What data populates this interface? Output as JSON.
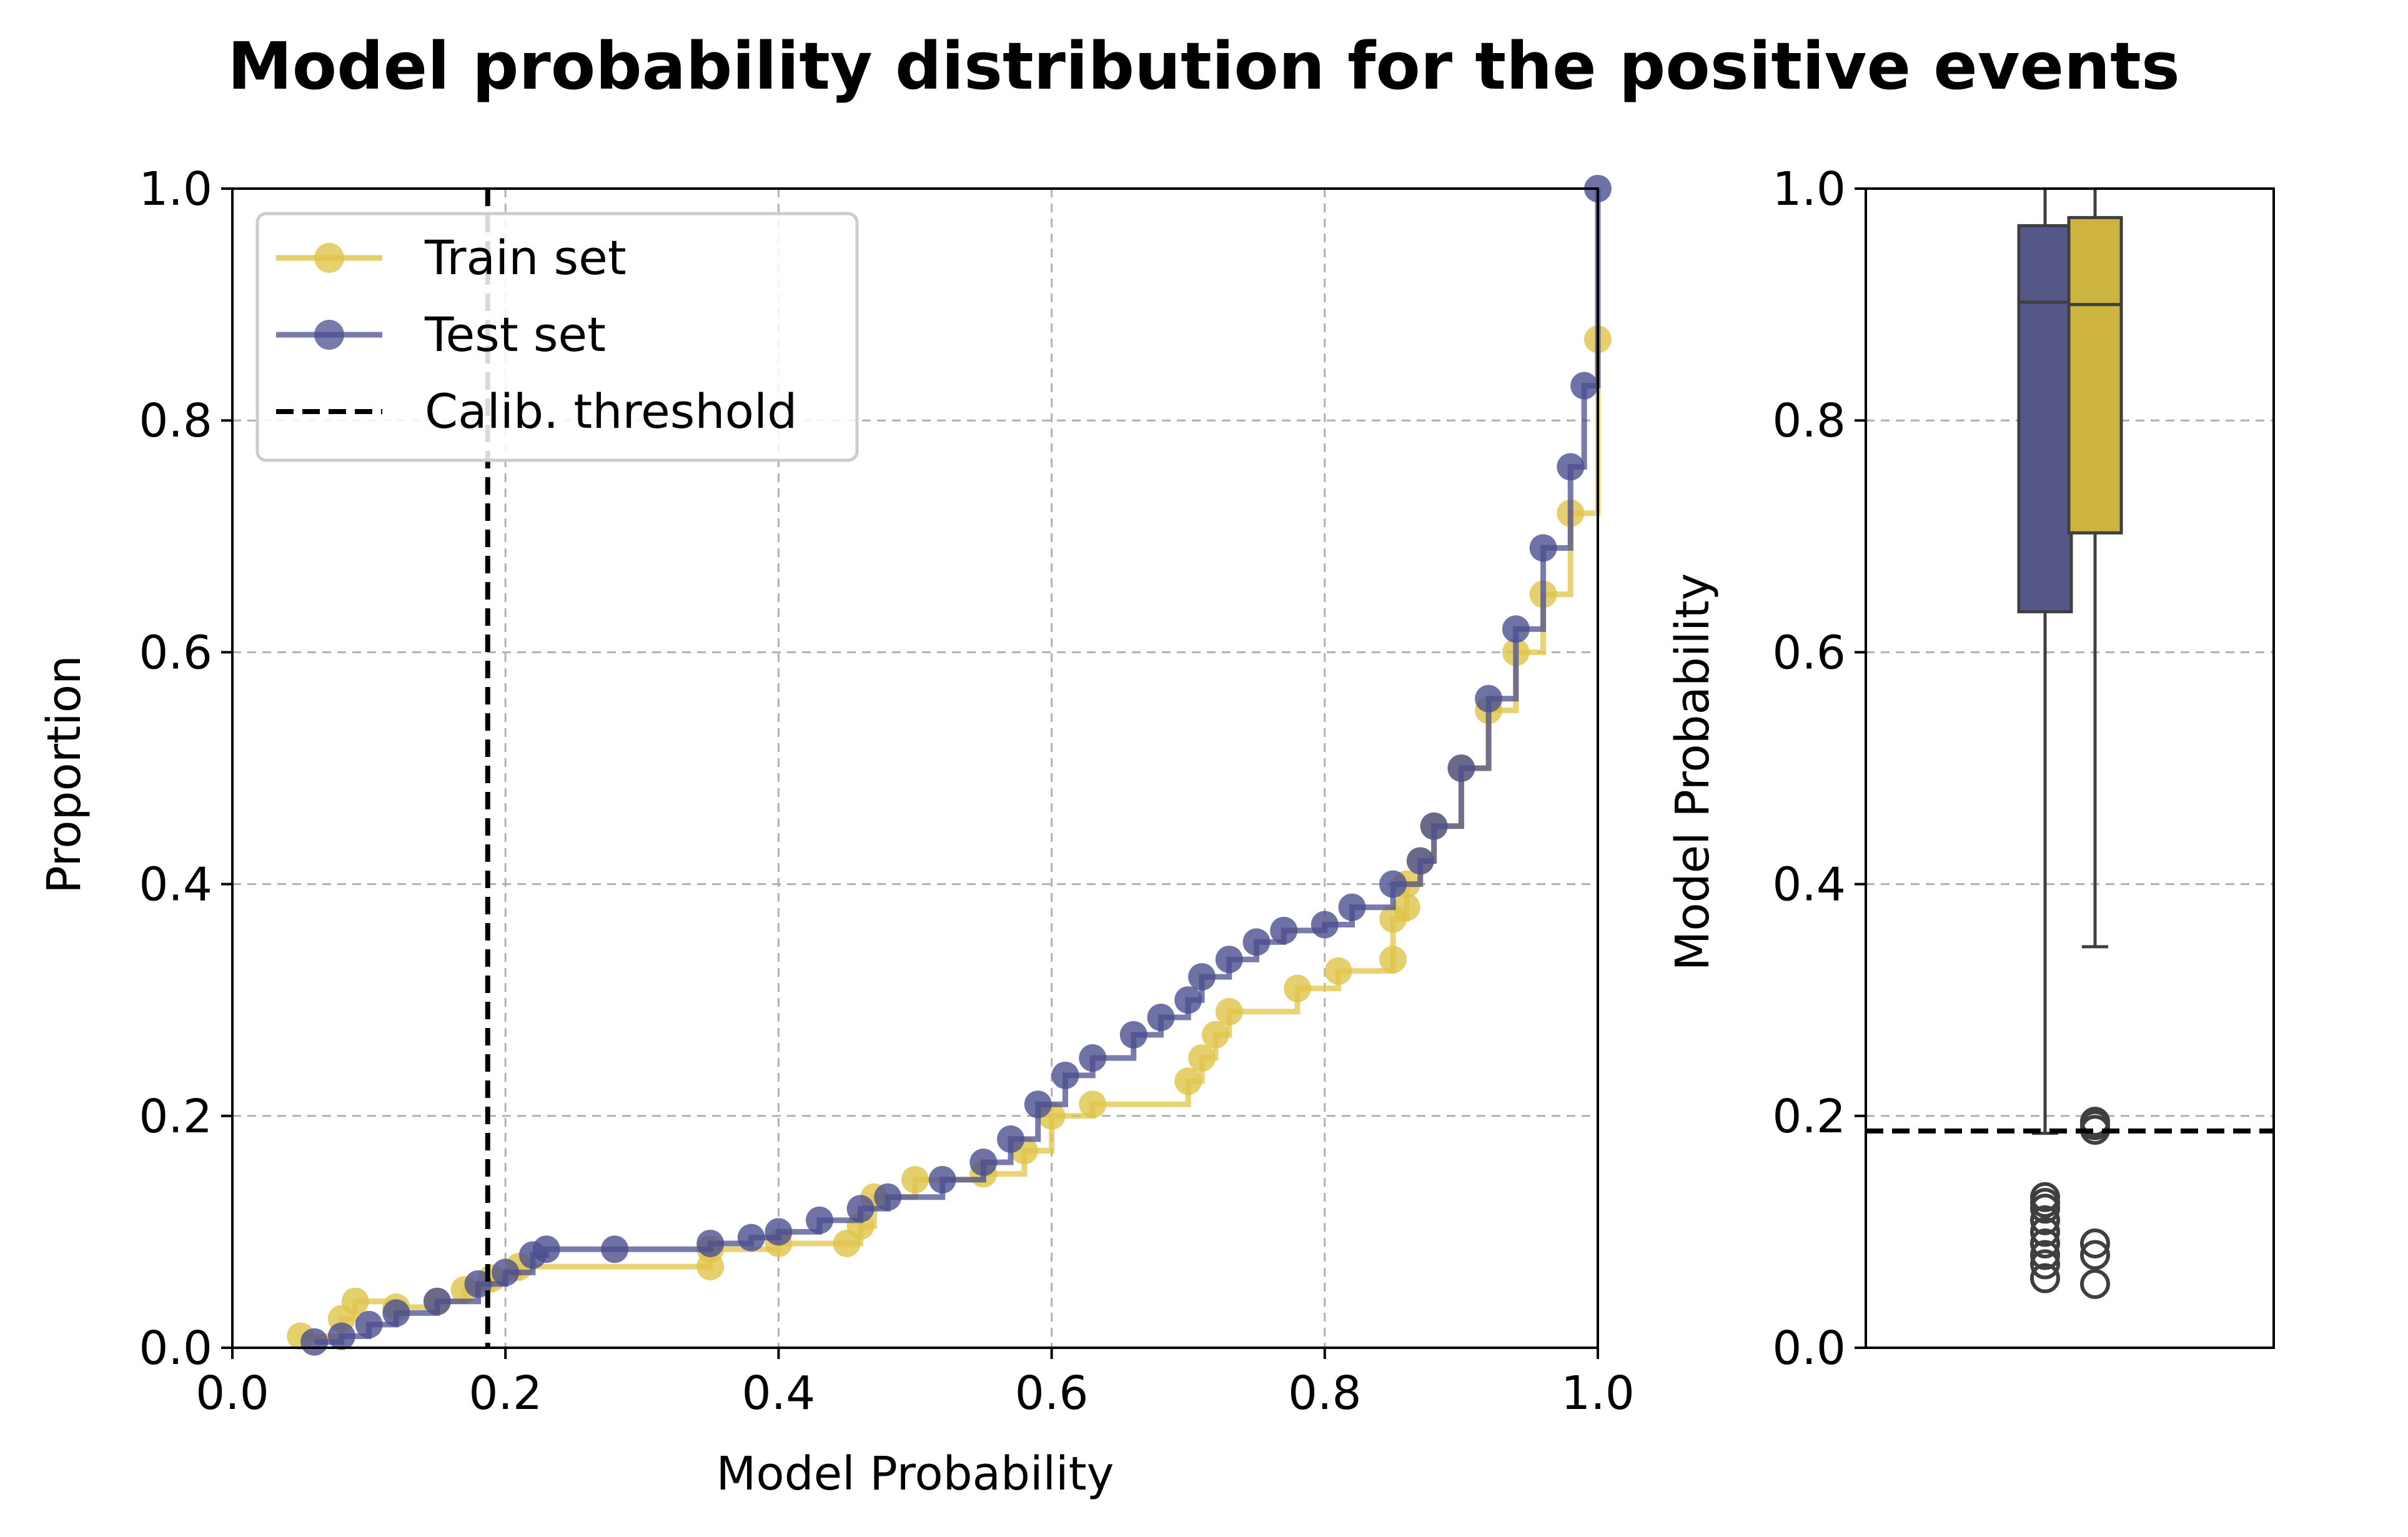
{
  "title": "Model probability distribution for the positive events",
  "colors": {
    "train": "#e0c44a",
    "test": "#4b4f8f",
    "train_box": "#cdb441",
    "test_box": "#555789",
    "threshold": "#000000",
    "grid": "#b0b0b0"
  },
  "chart_data": [
    {
      "type": "line",
      "name": "ecdf",
      "xlabel": "Model Probability",
      "ylabel": "Proportion",
      "xlim": [
        0.0,
        1.0
      ],
      "ylim": [
        0.0,
        1.0
      ],
      "xticks": [
        "0.0",
        "0.2",
        "0.4",
        "0.6",
        "0.8",
        "1.0"
      ],
      "yticks": [
        "0.0",
        "0.2",
        "0.4",
        "0.6",
        "0.8",
        "1.0"
      ],
      "grid": true,
      "legend": {
        "position": "top-left",
        "entries": [
          "Train set",
          "Test set",
          "Calib. threshold"
        ]
      },
      "threshold": 0.187,
      "series": [
        {
          "name": "Train set",
          "x": [
            0.05,
            0.08,
            0.09,
            0.12,
            0.15,
            0.17,
            0.19,
            0.21,
            0.35,
            0.35,
            0.4,
            0.45,
            0.46,
            0.47,
            0.5,
            0.55,
            0.58,
            0.6,
            0.63,
            0.7,
            0.71,
            0.72,
            0.73,
            0.78,
            0.81,
            0.85,
            0.85,
            0.86,
            0.86,
            0.87,
            0.88,
            0.9,
            0.92,
            0.94,
            0.96,
            0.98,
            1.0
          ],
          "y": [
            0.01,
            0.025,
            0.04,
            0.035,
            0.04,
            0.05,
            0.06,
            0.07,
            0.07,
            0.085,
            0.09,
            0.09,
            0.105,
            0.13,
            0.145,
            0.15,
            0.17,
            0.2,
            0.21,
            0.23,
            0.25,
            0.27,
            0.29,
            0.31,
            0.325,
            0.335,
            0.37,
            0.38,
            0.4,
            0.42,
            0.45,
            0.5,
            0.55,
            0.6,
            0.65,
            0.72,
            0.87
          ]
        },
        {
          "name": "Test set",
          "x": [
            0.06,
            0.08,
            0.1,
            0.12,
            0.15,
            0.18,
            0.2,
            0.22,
            0.23,
            0.28,
            0.35,
            0.38,
            0.4,
            0.43,
            0.46,
            0.48,
            0.52,
            0.55,
            0.57,
            0.59,
            0.61,
            0.63,
            0.66,
            0.68,
            0.7,
            0.71,
            0.73,
            0.75,
            0.77,
            0.8,
            0.82,
            0.85,
            0.87,
            0.88,
            0.9,
            0.92,
            0.94,
            0.96,
            0.98,
            0.99,
            1.0
          ],
          "y": [
            0.005,
            0.01,
            0.02,
            0.03,
            0.04,
            0.055,
            0.065,
            0.08,
            0.085,
            0.085,
            0.09,
            0.095,
            0.1,
            0.11,
            0.12,
            0.13,
            0.145,
            0.16,
            0.18,
            0.21,
            0.235,
            0.25,
            0.27,
            0.285,
            0.3,
            0.32,
            0.335,
            0.35,
            0.36,
            0.365,
            0.38,
            0.4,
            0.42,
            0.45,
            0.5,
            0.56,
            0.62,
            0.69,
            0.76,
            0.83,
            1.0
          ]
        }
      ]
    },
    {
      "type": "box",
      "name": "boxplot",
      "ylabel": "Model Probability",
      "ylim": [
        0.0,
        1.0
      ],
      "yticks": [
        "0.0",
        "0.2",
        "0.4",
        "0.6",
        "0.8",
        "1.0"
      ],
      "grid": true,
      "threshold": 0.187,
      "boxes": [
        {
          "series": "Test set",
          "q1": 0.635,
          "median": 0.902,
          "q3": 0.968,
          "whisker_low": 0.185,
          "whisker_high": 1.0,
          "outliers": [
            0.06,
            0.072,
            0.08,
            0.09,
            0.1,
            0.11,
            0.12,
            0.125,
            0.13
          ]
        },
        {
          "series": "Train set",
          "q1": 0.703,
          "median": 0.9,
          "q3": 0.975,
          "whisker_low": 0.346,
          "whisker_high": 1.0,
          "outliers": [
            0.055,
            0.08,
            0.09,
            0.188,
            0.192,
            0.195
          ]
        }
      ]
    }
  ]
}
